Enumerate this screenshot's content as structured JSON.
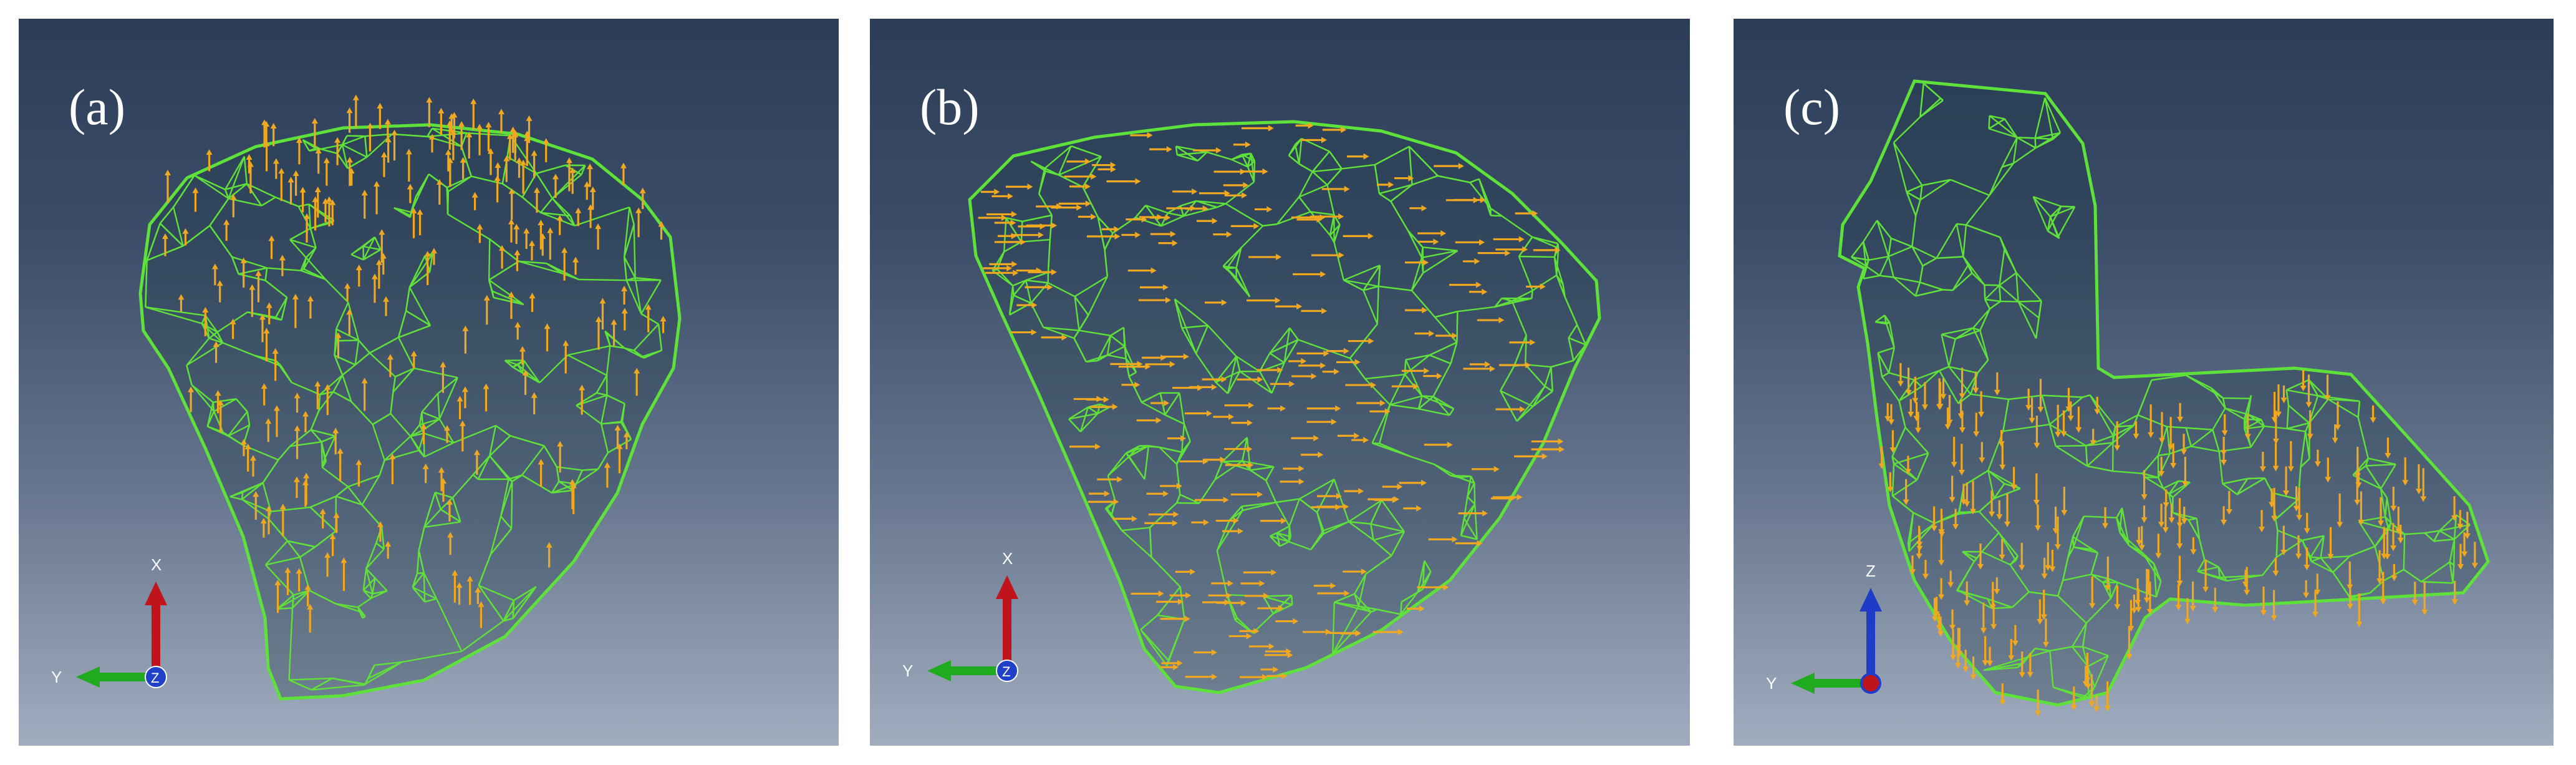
{
  "panels": [
    {
      "id": "a",
      "label": "(a)",
      "arrow_direction": "up",
      "triad": {
        "up_axis": "X",
        "left_axis": "Y",
        "center_axis": "Z",
        "up_color": "#c0141c",
        "left_color": "#1faa1f",
        "center_color": "#2040c8"
      }
    },
    {
      "id": "b",
      "label": "(b)",
      "arrow_direction": "right",
      "triad": {
        "up_axis": "X",
        "left_axis": "Y",
        "center_axis": "Z",
        "up_color": "#c0141c",
        "left_color": "#1faa1f",
        "center_color": "#2040c8"
      }
    },
    {
      "id": "c",
      "label": "(c)",
      "arrow_direction": "down",
      "triad": {
        "up_axis": "Z",
        "left_axis": "Y",
        "center_axis": "",
        "up_color": "#1e3cc8",
        "left_color": "#1faa1f",
        "center_color": "#c0141c"
      }
    }
  ],
  "colors": {
    "mesh": "#5fe03a",
    "load_arrows": "#f0a820",
    "background_top": "#2c3d58",
    "background_bottom": "#a1adbf"
  }
}
